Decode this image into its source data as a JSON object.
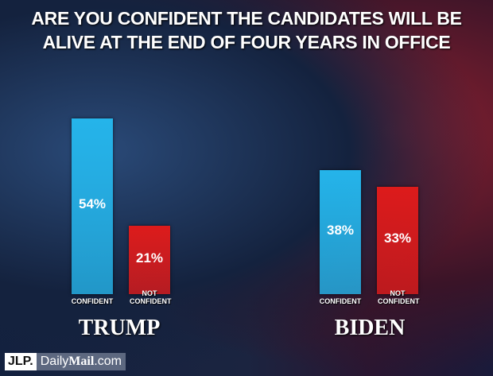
{
  "title": "ARE YOU CONFIDENT THE CANDIDATES WILL BE ALIVE AT THE END OF FOUR YEARS IN OFFICE",
  "chart_data": [
    {
      "type": "bar",
      "title": "TRUMP",
      "categories": [
        "CONFIDENT",
        "NOT CONFIDENT"
      ],
      "values": [
        54,
        21
      ],
      "value_labels": [
        "54%",
        "21%"
      ],
      "colors": [
        "#25b4ea",
        "#dd1b1b"
      ]
    },
    {
      "type": "bar",
      "title": "BIDEN",
      "categories": [
        "CONFIDENT",
        "NOT CONFIDENT"
      ],
      "values": [
        38,
        33
      ],
      "value_labels": [
        "38%",
        "33%"
      ],
      "colors": [
        "#25b4ea",
        "#dd1b1b"
      ]
    }
  ],
  "logo": {
    "jlp": "JLP.",
    "daily": "Daily",
    "mail": "Mail",
    "com": ".com"
  }
}
